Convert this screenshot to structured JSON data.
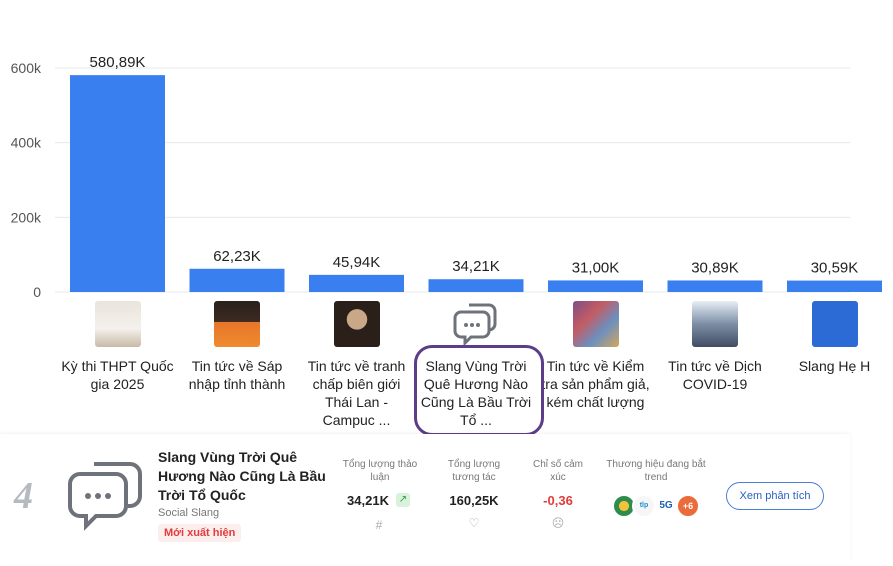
{
  "chart_data": {
    "type": "bar",
    "y_ticks": [
      "600k",
      "400k",
      "200k",
      "0"
    ],
    "y_tick_values": [
      600000,
      400000,
      200000,
      0
    ],
    "ylim": [
      0,
      620000
    ],
    "bar_color": "#3a7ff0",
    "categories": [
      "Kỳ thi THPT Quốc gia 2025",
      "Tin tức về Sáp nhập tỉnh thành",
      "Tin tức về tranh chấp biên giới Thái Lan - Campuc ...",
      "Slang Vùng Trời Quê Hương Nào Cũng Là Bầu Trời Tổ ...",
      "Tin tức về Kiểm tra sản phẩm giả, kém chất lượng",
      "Tin tức về Dịch COVID-19",
      "Slang Hẹ H"
    ],
    "values": [
      580890,
      62230,
      45940,
      34210,
      31000,
      30890,
      30590
    ],
    "value_labels": [
      "580,89K",
      "62,23K",
      "45,94K",
      "34,21K",
      "31,00K",
      "30,89K",
      "30,59K"
    ],
    "highlighted_index": 3
  },
  "detail": {
    "rank": "4",
    "title": "Slang Vùng Trời Quê Hương Nào Cũng Là Bầu Trời Tổ Quốc",
    "category": "Social Slang",
    "badge": "Mới xuất hiện",
    "metrics": {
      "discussion_label": "Tổng lượng thảo luận",
      "discussion_value": "34,21K",
      "interaction_label": "Tổng lượng tương tác",
      "interaction_value": "160,25K",
      "sentiment_label": "Chỉ số cảm xúc",
      "sentiment_value": "-0,36",
      "brands_label": "Thương hiệu đang bắt trend",
      "brands_more": "+6"
    },
    "button_label": "Xem phân tích",
    "brand_logos": [
      "brand-logo-1",
      "brand-logo-2",
      "brand-logo-5g"
    ],
    "brand_logo_text": [
      "",
      "tlp",
      "5G"
    ]
  }
}
